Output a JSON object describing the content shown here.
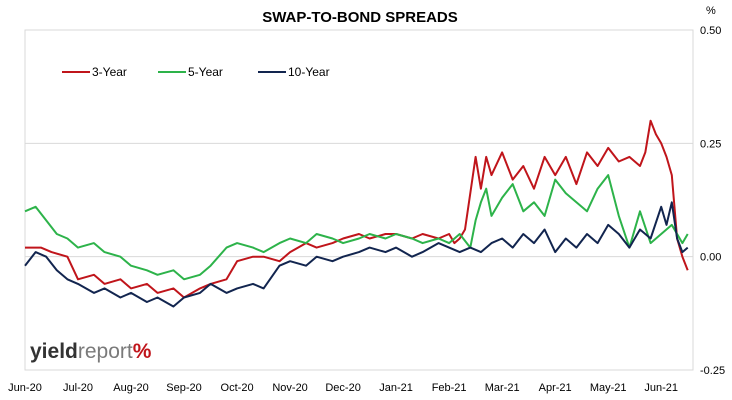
{
  "logo": {
    "part1": "yield",
    "part2": "report",
    "part3": "%"
  },
  "chart_data": {
    "type": "line",
    "title": "SWAP-TO-BOND SPREADS",
    "ylabel": "%",
    "ylim": [
      -0.25,
      0.5
    ],
    "yticks": [
      -0.25,
      0.0,
      0.25,
      0.5
    ],
    "ytick_labels": [
      "-0.25",
      "0.00",
      "0.25",
      "0.50"
    ],
    "xlim": [
      0,
      12.6
    ],
    "x_tick_labels": [
      "Jun-20",
      "Jul-20",
      "Aug-20",
      "Sep-20",
      "Oct-20",
      "Nov-20",
      "Dec-20",
      "Jan-21",
      "Feb-21",
      "Mar-21",
      "Apr-21",
      "May-21",
      "Jun-21"
    ],
    "grid": true,
    "legend_position": "top-left",
    "series": [
      {
        "name": "3-Year",
        "color": "#c0151b",
        "x": [
          0,
          0.3,
          0.5,
          0.8,
          1,
          1.3,
          1.5,
          1.8,
          2,
          2.3,
          2.5,
          2.8,
          3,
          3.3,
          3.5,
          3.8,
          4,
          4.3,
          4.5,
          4.8,
          5,
          5.3,
          5.5,
          5.8,
          6,
          6.3,
          6.5,
          6.8,
          7,
          7.3,
          7.5,
          7.8,
          8,
          8.1,
          8.2,
          8.3,
          8.5,
          8.6,
          8.7,
          8.8,
          9,
          9.2,
          9.4,
          9.6,
          9.8,
          10,
          10.2,
          10.4,
          10.6,
          10.8,
          11,
          11.2,
          11.4,
          11.6,
          11.7,
          11.8,
          11.9,
          12,
          12.1,
          12.2,
          12.3,
          12.4,
          12.5
        ],
        "y": [
          0.02,
          0.02,
          0.01,
          0.0,
          -0.05,
          -0.04,
          -0.06,
          -0.05,
          -0.07,
          -0.06,
          -0.08,
          -0.07,
          -0.09,
          -0.07,
          -0.06,
          -0.05,
          -0.01,
          0.0,
          0.0,
          -0.01,
          0.01,
          0.03,
          0.02,
          0.03,
          0.04,
          0.05,
          0.04,
          0.05,
          0.05,
          0.04,
          0.05,
          0.04,
          0.05,
          0.03,
          0.04,
          0.06,
          0.22,
          0.15,
          0.22,
          0.18,
          0.23,
          0.17,
          0.2,
          0.15,
          0.22,
          0.18,
          0.22,
          0.16,
          0.23,
          0.2,
          0.24,
          0.21,
          0.22,
          0.2,
          0.23,
          0.3,
          0.27,
          0.25,
          0.22,
          0.18,
          0.04,
          0.0,
          -0.03
        ]
      },
      {
        "name": "5-Year",
        "color": "#2db34a",
        "x": [
          0,
          0.2,
          0.4,
          0.6,
          0.8,
          1,
          1.3,
          1.5,
          1.8,
          2,
          2.3,
          2.5,
          2.8,
          3,
          3.3,
          3.5,
          3.8,
          4,
          4.3,
          4.5,
          4.8,
          5,
          5.3,
          5.5,
          5.8,
          6,
          6.3,
          6.5,
          6.8,
          7,
          7.3,
          7.5,
          7.8,
          8,
          8.2,
          8.4,
          8.5,
          8.6,
          8.7,
          8.8,
          9,
          9.2,
          9.4,
          9.6,
          9.8,
          10,
          10.2,
          10.4,
          10.6,
          10.8,
          11,
          11.2,
          11.4,
          11.6,
          11.8,
          12,
          12.2,
          12.4,
          12.5
        ],
        "y": [
          0.1,
          0.11,
          0.08,
          0.05,
          0.04,
          0.02,
          0.03,
          0.01,
          0.0,
          -0.02,
          -0.03,
          -0.04,
          -0.03,
          -0.05,
          -0.04,
          -0.02,
          0.02,
          0.03,
          0.02,
          0.01,
          0.03,
          0.04,
          0.03,
          0.05,
          0.04,
          0.03,
          0.04,
          0.05,
          0.04,
          0.05,
          0.04,
          0.03,
          0.04,
          0.03,
          0.05,
          0.02,
          0.08,
          0.12,
          0.15,
          0.09,
          0.13,
          0.16,
          0.1,
          0.12,
          0.09,
          0.17,
          0.14,
          0.12,
          0.1,
          0.15,
          0.18,
          0.09,
          0.02,
          0.1,
          0.03,
          0.05,
          0.07,
          0.03,
          0.05
        ]
      },
      {
        "name": "10-Year",
        "color": "#12254f",
        "x": [
          0,
          0.2,
          0.4,
          0.6,
          0.8,
          1,
          1.3,
          1.5,
          1.8,
          2,
          2.3,
          2.5,
          2.8,
          3,
          3.3,
          3.5,
          3.8,
          4,
          4.3,
          4.5,
          4.8,
          5,
          5.3,
          5.5,
          5.8,
          6,
          6.3,
          6.5,
          6.8,
          7,
          7.3,
          7.5,
          7.8,
          8,
          8.2,
          8.4,
          8.6,
          8.8,
          9,
          9.2,
          9.4,
          9.6,
          9.8,
          10,
          10.2,
          10.4,
          10.6,
          10.8,
          11,
          11.2,
          11.4,
          11.6,
          11.8,
          12,
          12.1,
          12.2,
          12.3,
          12.4,
          12.5
        ],
        "y": [
          -0.02,
          0.01,
          0.0,
          -0.03,
          -0.05,
          -0.06,
          -0.08,
          -0.07,
          -0.09,
          -0.08,
          -0.1,
          -0.09,
          -0.11,
          -0.09,
          -0.08,
          -0.06,
          -0.08,
          -0.07,
          -0.06,
          -0.07,
          -0.02,
          -0.01,
          -0.02,
          0.0,
          -0.01,
          0.0,
          0.01,
          0.02,
          0.01,
          0.02,
          0.0,
          0.01,
          0.03,
          0.02,
          0.01,
          0.02,
          0.01,
          0.03,
          0.04,
          0.02,
          0.05,
          0.03,
          0.06,
          0.01,
          0.04,
          0.02,
          0.05,
          0.03,
          0.07,
          0.05,
          0.02,
          0.06,
          0.04,
          0.11,
          0.07,
          0.12,
          0.04,
          0.01,
          0.02
        ]
      }
    ]
  }
}
